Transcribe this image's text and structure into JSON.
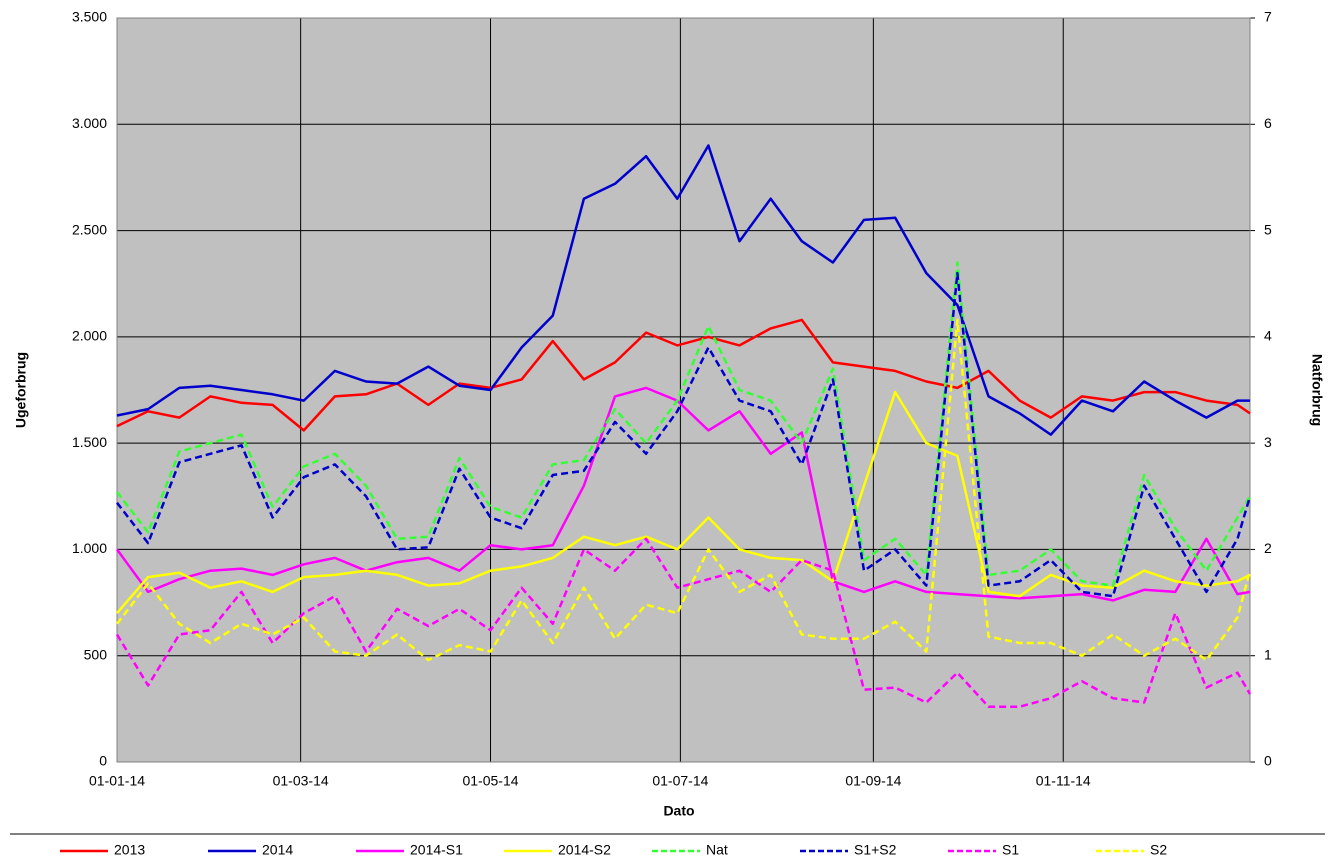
{
  "chart_data": {
    "type": "line",
    "xlabel": "Dato",
    "ylabel": "Ugeforbrug",
    "y2label": "Natforbrug",
    "x": [
      0,
      10,
      20,
      30,
      40,
      50,
      60,
      70,
      80,
      90,
      100,
      110,
      120,
      130,
      140,
      150,
      160,
      170,
      180,
      190,
      200,
      210,
      220,
      230,
      240,
      250,
      260,
      270,
      280,
      290,
      300,
      310,
      320,
      330,
      340,
      350,
      360,
      364
    ],
    "xlim": [
      0,
      364
    ],
    "xticks": [
      {
        "value": 0,
        "label": "01-01-14"
      },
      {
        "value": 59,
        "label": "01-03-14"
      },
      {
        "value": 120,
        "label": "01-05-14"
      },
      {
        "value": 181,
        "label": "01-07-14"
      },
      {
        "value": 243,
        "label": "01-09-14"
      },
      {
        "value": 304,
        "label": "01-11-14"
      }
    ],
    "ylim": [
      0,
      3500
    ],
    "yticks": [
      0,
      500,
      {
        "value": 1000,
        "label": "1.000"
      },
      {
        "value": 1500,
        "label": "1.500"
      },
      {
        "value": 2000,
        "label": "2.000"
      },
      {
        "value": 2500,
        "label": "2.500"
      },
      {
        "value": 3000,
        "label": "3.000"
      },
      {
        "value": 3500,
        "label": "3.500"
      }
    ],
    "y2lim": [
      0,
      7
    ],
    "y2ticks": [
      0,
      1,
      2,
      3,
      4,
      5,
      6,
      7
    ],
    "grid": true,
    "background": "#c0c0c0",
    "series": [
      {
        "name": "2013",
        "color": "#ff0000",
        "style": "solid",
        "values": [
          1580,
          1650,
          1620,
          1720,
          1690,
          1680,
          1560,
          1720,
          1730,
          1780,
          1680,
          1780,
          1760,
          1800,
          1980,
          1800,
          1880,
          2020,
          1960,
          2000,
          1960,
          2040,
          2080,
          1880,
          1860,
          1840,
          1790,
          1760,
          1840,
          1700,
          1620,
          1720,
          1700,
          1740,
          1740,
          1700,
          1680,
          1640
        ]
      },
      {
        "name": "2014",
        "color": "#0000cc",
        "style": "solid",
        "values": [
          1630,
          1660,
          1760,
          1770,
          1750,
          1730,
          1700,
          1840,
          1790,
          1780,
          1860,
          1770,
          1750,
          1950,
          2100,
          2650,
          2720,
          2850,
          2650,
          2900,
          2450,
          2650,
          2450,
          2350,
          2550,
          2560,
          2300,
          2150,
          1720,
          1640,
          1540,
          1700,
          1650,
          1790,
          1700,
          1620,
          1700,
          1700
        ]
      },
      {
        "name": "2014-S1",
        "color": "#ff00ff",
        "style": "solid",
        "values": [
          1000,
          800,
          860,
          900,
          910,
          880,
          930,
          960,
          900,
          940,
          960,
          900,
          1020,
          1000,
          1020,
          1300,
          1720,
          1760,
          1700,
          1560,
          1650,
          1450,
          1550,
          850,
          800,
          850,
          800,
          790,
          780,
          770,
          780,
          790,
          760,
          810,
          800,
          1050,
          790,
          800
        ]
      },
      {
        "name": "2014-S2",
        "color": "#ffff00",
        "style": "solid",
        "values": [
          700,
          870,
          890,
          820,
          850,
          800,
          870,
          880,
          900,
          880,
          830,
          840,
          900,
          920,
          960,
          1060,
          1020,
          1060,
          1000,
          1150,
          1000,
          960,
          950,
          850,
          1300,
          1740,
          1500,
          1440,
          800,
          780,
          880,
          830,
          820,
          900,
          850,
          830,
          850,
          880
        ]
      },
      {
        "name": "Nat",
        "color": "#33ff33",
        "style": "dashed",
        "axis": "y2",
        "values": [
          2.54,
          2.16,
          2.92,
          3,
          3.08,
          2.4,
          2.78,
          2.9,
          2.6,
          2.1,
          2.12,
          2.86,
          2.4,
          2.3,
          2.8,
          2.84,
          3.32,
          3,
          3.4,
          4.1,
          3.5,
          3.4,
          3,
          3.7,
          1.9,
          2.1,
          1.76,
          4.7,
          1.76,
          1.8,
          2,
          1.7,
          1.66,
          2.7,
          2.2,
          1.8,
          2.3,
          2.5
        ]
      },
      {
        "name": "S1+S2",
        "color": "#0000cc",
        "style": "dashed",
        "axis": "y2",
        "values": [
          2.44,
          2.06,
          2.82,
          2.9,
          2.98,
          2.3,
          2.68,
          2.8,
          2.5,
          2,
          2.02,
          2.76,
          2.3,
          2.2,
          2.7,
          2.74,
          3.2,
          2.9,
          3.3,
          3.9,
          3.4,
          3.3,
          2.8,
          3.6,
          1.8,
          2,
          1.66,
          4.6,
          1.66,
          1.7,
          1.9,
          1.6,
          1.56,
          2.6,
          2.1,
          1.6,
          2.1,
          2.5
        ]
      },
      {
        "name": "S1",
        "color": "#ff00ff",
        "style": "dashed",
        "axis": "y2",
        "values": [
          1.2,
          0.72,
          1.2,
          1.24,
          1.6,
          1.12,
          1.4,
          1.56,
          1.04,
          1.44,
          1.28,
          1.44,
          1.24,
          1.64,
          1.3,
          2,
          1.8,
          2.1,
          1.64,
          1.72,
          1.8,
          1.6,
          1.9,
          1.8,
          0.68,
          0.7,
          0.56,
          0.84,
          0.52,
          0.52,
          0.6,
          0.76,
          0.6,
          0.56,
          1.4,
          0.7,
          0.84,
          0.64
        ]
      },
      {
        "name": "S2",
        "color": "#ffff00",
        "style": "dashed",
        "axis": "y2",
        "values": [
          1.3,
          1.68,
          1.3,
          1.12,
          1.3,
          1.2,
          1.36,
          1.04,
          1,
          1.2,
          0.96,
          1.1,
          1.04,
          1.52,
          1.12,
          1.64,
          1.16,
          1.48,
          1.4,
          2,
          1.6,
          1.76,
          1.2,
          1.16,
          1.16,
          1.32,
          1.04,
          4.16,
          1.18,
          1.12,
          1.12,
          1,
          1.2,
          1,
          1.16,
          0.96,
          1.36,
          1.8
        ]
      }
    ]
  }
}
